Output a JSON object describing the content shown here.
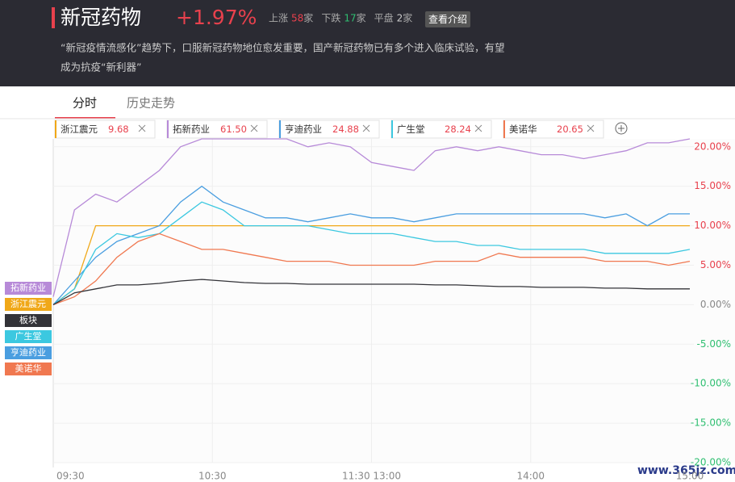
{
  "header": {
    "title": "新冠药物",
    "change": "+1.97%",
    "stats": [
      {
        "label": "上涨",
        "count": 58
      },
      {
        "label": "下跌",
        "count": 17
      },
      {
        "label": "平盘",
        "count": 2
      }
    ],
    "unit": "家",
    "button": "查看介绍",
    "description": [
      "“新冠疫情流感化”趋势下，口服新冠药物地位愈发重要，国产新冠药物已有多个进入临床试验，有望",
      "成为抗疫“新利器”"
    ]
  },
  "tabs": [
    "分时",
    "历史走势"
  ],
  "watermark": "www.365jz.com",
  "chart_data": {
    "type": "line",
    "x": [
      0,
      8,
      16,
      24,
      32,
      40,
      48,
      56,
      64,
      72,
      80,
      88,
      96,
      104,
      112,
      120,
      128,
      136,
      144,
      152,
      160,
      168,
      176,
      184,
      192,
      200,
      208,
      216,
      224,
      232,
      240
    ],
    "xlim": [
      0,
      240
    ],
    "xticks": [
      {
        "value": 0,
        "label": "09:30"
      },
      {
        "value": 60,
        "label": "10:30"
      },
      {
        "value": 120,
        "label": "11:30 13:00"
      },
      {
        "value": 180,
        "label": "14:00"
      },
      {
        "value": 240,
        "label": "15:00"
      }
    ],
    "ylim": [
      -20,
      21
    ],
    "yticks": [
      {
        "value": -20,
        "label": "-20.00%"
      },
      {
        "value": -15,
        "label": "-15.00%"
      },
      {
        "value": -10,
        "label": "-10.00%"
      },
      {
        "value": -5,
        "label": "-5.00%"
      },
      {
        "value": 0,
        "label": "0.00%"
      },
      {
        "value": 5,
        "label": "5.00%"
      },
      {
        "value": 10,
        "label": "10.00%"
      },
      {
        "value": 15,
        "label": "15.00%"
      },
      {
        "value": 20,
        "label": "20.00%"
      }
    ],
    "grid": true,
    "series": [
      {
        "name": "浙江震元",
        "color": "#f0a818",
        "price": 9.68,
        "values": [
          0,
          2,
          10,
          10,
          10,
          10,
          10,
          10,
          10,
          10,
          10,
          10,
          10,
          10,
          10,
          10,
          10,
          10,
          10,
          10,
          10,
          10,
          10,
          10,
          10,
          10,
          10,
          10,
          10,
          10,
          10
        ]
      },
      {
        "name": "拓新药业",
        "color": "#b78ad8",
        "price": {
          "value": 61.5,
          "label": "61.50"
        },
        "values": [
          1,
          12,
          14,
          13,
          15,
          17,
          20,
          21,
          21,
          21,
          21,
          21,
          20,
          20.5,
          20,
          18,
          17.5,
          17,
          19.5,
          20,
          19.5,
          20,
          19.5,
          19,
          19,
          18.5,
          19,
          19.5,
          20.5,
          20.5,
          21
        ]
      },
      {
        "name": "亨迪药业",
        "color": "#4a9ee0",
        "price": 24.88,
        "values": [
          0,
          3,
          6,
          8,
          9,
          10,
          13,
          15,
          13,
          12,
          11,
          11,
          10.5,
          11,
          11.5,
          11,
          11,
          10.5,
          11,
          11.5,
          11.5,
          11.5,
          11.5,
          11.5,
          11.5,
          11.5,
          11,
          11.5,
          10,
          11.5,
          11.5
        ]
      },
      {
        "name": "广生堂",
        "color": "#3cc8e0",
        "price": 28.24,
        "values": [
          0,
          2,
          7,
          9,
          8.5,
          9,
          11,
          13,
          12,
          10,
          10,
          10,
          10,
          9.5,
          9,
          9,
          9,
          8.5,
          8,
          8,
          7.5,
          7.5,
          7,
          7,
          7,
          7,
          6.5,
          6.5,
          6.5,
          6.5,
          7
        ]
      },
      {
        "name": "美诺华",
        "color": "#f07850",
        "price": 20.65,
        "values": [
          0,
          1,
          3,
          6,
          8,
          9,
          8,
          7,
          7,
          6.5,
          6,
          5.5,
          5.5,
          5.5,
          5,
          5,
          5,
          5,
          5.5,
          5.5,
          5.5,
          6.5,
          6,
          6,
          6,
          6,
          5.5,
          5.5,
          5.5,
          5,
          5.5
        ]
      },
      {
        "name": "板块",
        "color": "#333338",
        "values": [
          0,
          1.5,
          2,
          2.5,
          2.5,
          2.7,
          3,
          3.2,
          3,
          2.8,
          2.7,
          2.7,
          2.6,
          2.6,
          2.6,
          2.6,
          2.6,
          2.6,
          2.5,
          2.5,
          2.4,
          2.3,
          2.3,
          2.2,
          2.2,
          2.2,
          2.1,
          2.1,
          2,
          2,
          2
        ]
      }
    ]
  }
}
